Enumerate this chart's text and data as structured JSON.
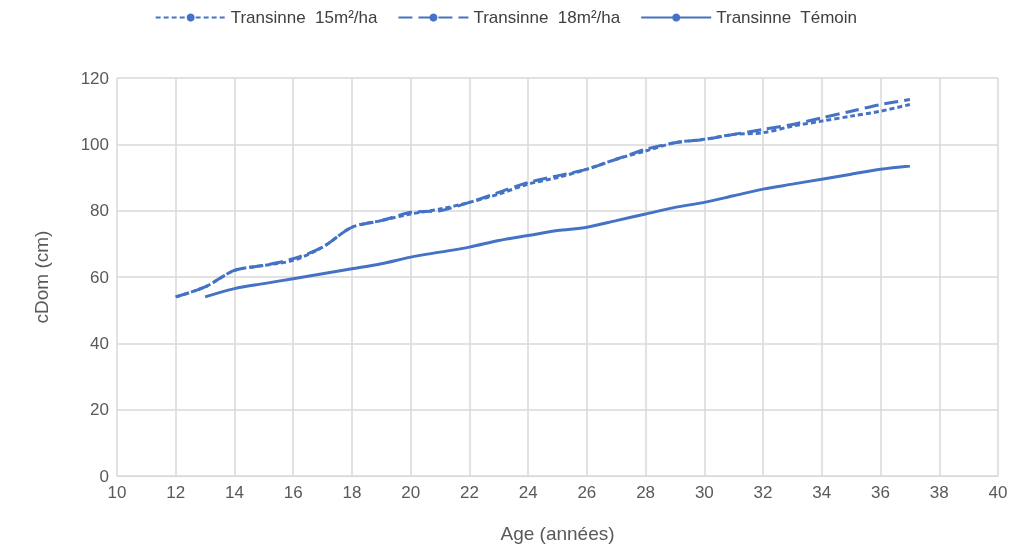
{
  "chart_data": {
    "type": "line",
    "xlabel": "Age (années)",
    "ylabel": "cDom (cm)",
    "xlim": [
      10,
      40
    ],
    "xticks": [
      10,
      12,
      14,
      16,
      18,
      20,
      22,
      24,
      26,
      28,
      30,
      32,
      34,
      36,
      38,
      40
    ],
    "ylim": [
      0,
      120
    ],
    "yticks": [
      0,
      20,
      40,
      60,
      80,
      100,
      120
    ],
    "grid": true,
    "legend": "top",
    "marker": "none",
    "series": [
      {
        "name": "Transinne  15m²/ha",
        "color": "#4472c4",
        "line_style": "dotted",
        "x": [
          12,
          13,
          14,
          15,
          16,
          17,
          18,
          19,
          20,
          21,
          22,
          23,
          24,
          25,
          26,
          27,
          28,
          29,
          30,
          31,
          32,
          33,
          34,
          35,
          36,
          37
        ],
        "values": [
          54,
          57,
          62,
          63.5,
          65,
          69,
          75,
          77,
          79,
          80.5,
          82.5,
          85,
          88,
          90,
          92.5,
          95.5,
          98,
          100.5,
          101.5,
          103,
          103.5,
          105.5,
          107,
          108.5,
          110,
          112
        ]
      },
      {
        "name": "Transinne  18m²/ha",
        "color": "#4472c4",
        "line_style": "dashed",
        "x": [
          12,
          13,
          14,
          15,
          16,
          17,
          18,
          19,
          20,
          21,
          22,
          23,
          24,
          25,
          26,
          27,
          28,
          29,
          30,
          31,
          32,
          33,
          34,
          35,
          36,
          37
        ],
        "values": [
          54,
          57,
          62,
          63.5,
          65.5,
          69,
          75,
          77,
          79.5,
          80,
          82.5,
          85.5,
          88.5,
          90.5,
          92.5,
          95.5,
          98.5,
          100.5,
          101.5,
          103,
          104.5,
          106,
          108,
          110,
          112,
          113.5
        ]
      },
      {
        "name": "Transinne  Témoin",
        "color": "#4472c4",
        "line_style": "solid",
        "x": [
          13,
          14,
          15,
          16,
          17,
          18,
          19,
          20,
          21,
          22,
          23,
          24,
          25,
          26,
          27,
          28,
          29,
          30,
          31,
          32,
          33,
          34,
          35,
          36,
          37
        ],
        "values": [
          54,
          56.5,
          58,
          59.5,
          61,
          62.5,
          64,
          66,
          67.5,
          69,
          71,
          72.5,
          74,
          75,
          77,
          79,
          81,
          82.5,
          84.5,
          86.5,
          88,
          89.5,
          91,
          92.5,
          93.5
        ]
      }
    ]
  }
}
